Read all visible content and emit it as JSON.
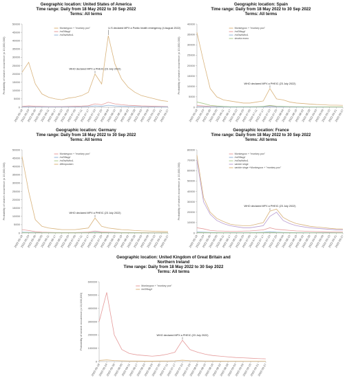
{
  "chart_data": [
    {
      "type": "line",
      "title": [
        "Geographic location: United States of America",
        "Time range: Daily from 18 May 2022 to 30 Sep 2022",
        "Terms: All terms"
      ],
      "y_label": "Probability of search occurrence (x 10,000,000)",
      "x": [
        "2022-05-18",
        "2022-05-24",
        "2022-05-30",
        "2022-06-05",
        "2022-06-11",
        "2022-06-17",
        "2022-06-23",
        "2022-06-29",
        "2022-07-05",
        "2022-07-11",
        "2022-07-17",
        "2022-07-23",
        "2022-07-29",
        "2022-08-04",
        "2022-08-10",
        "2022-08-16",
        "2022-08-22",
        "2022-08-28",
        "2022-09-03",
        "2022-09-09",
        "2022-09-15",
        "2022-09-21",
        "2022-09-27"
      ],
      "ylim": [
        0,
        50000
      ],
      "yticks": [
        0,
        5000,
        10000,
        15000,
        20000,
        25000,
        30000,
        35000,
        40000,
        45000,
        50000
      ],
      "series": [
        {
          "name": "Monkeypox + \"monkey pox\"",
          "color": "#d8b27a",
          "values": [
            21000,
            27000,
            14000,
            8000,
            6000,
            5000,
            4500,
            5500,
            6000,
            7000,
            9000,
            20000,
            14000,
            43000,
            26000,
            17000,
            12000,
            9000,
            7000,
            6000,
            5000,
            4000,
            3500
          ]
        },
        {
          "name": "/m/09kqyf",
          "color": "#e59a9a",
          "values": [
            500,
            800,
            600,
            500,
            400,
            400,
            400,
            500,
            600,
            700,
            900,
            2000,
            1500,
            3000,
            2000,
            1500,
            1200,
            1000,
            800,
            700,
            600,
            500,
            400
          ]
        },
        {
          "name": "/m/0w9sfhx1",
          "color": "#8fb0d6",
          "values": [
            200,
            300,
            200,
            200,
            150,
            150,
            150,
            200,
            200,
            300,
            400,
            800,
            600,
            1200,
            800,
            600,
            500,
            400,
            300,
            300,
            200,
            200,
            150
          ]
        }
      ],
      "annotations": [
        {
          "text": "WHO declared MPX a PHEIC (23 July 2022)",
          "x": "2022-07-23"
        },
        {
          "text": "U.S declared MPX a Public health emergency (4 August 2022)",
          "x": "2022-08-04"
        }
      ]
    },
    {
      "type": "line",
      "title": [
        "Geographic location: Spain",
        "Time range: Daily from 18 May 2022 to 30 Sep 2022",
        "Terms: All terms"
      ],
      "y_label": "Probability of search occurrence (x 10,000,000)",
      "x": [
        "2022-05-18",
        "2022-05-24",
        "2022-05-30",
        "2022-06-05",
        "2022-06-11",
        "2022-06-17",
        "2022-06-23",
        "2022-06-29",
        "2022-07-05",
        "2022-07-11",
        "2022-07-17",
        "2022-07-23",
        "2022-07-29",
        "2022-08-04",
        "2022-08-10",
        "2022-08-16",
        "2022-08-22",
        "2022-08-28",
        "2022-09-03",
        "2022-09-09",
        "2022-09-15",
        "2022-09-21",
        "2022-09-27"
      ],
      "ylim": [
        0,
        40000
      ],
      "yticks": [
        0,
        5000,
        10000,
        15000,
        20000,
        25000,
        30000,
        35000,
        40000
      ],
      "series": [
        {
          "name": "Monkeypox + \"monkey pox\"",
          "color": "#d8b27a",
          "values": [
            36000,
            22000,
            9000,
            5000,
            3500,
            3000,
            2500,
            2000,
            2000,
            2500,
            3000,
            9000,
            4000,
            3500,
            2500,
            2000,
            1800,
            1500,
            1300,
            1200,
            1000,
            1000,
            900
          ]
        },
        {
          "name": "/m/09kqyf",
          "color": "#e59a9a",
          "values": [
            800,
            600,
            400,
            300,
            300,
            200,
            200,
            200,
            200,
            300,
            300,
            800,
            400,
            300,
            300,
            200,
            200,
            200,
            200,
            150,
            150,
            150,
            150
          ]
        },
        {
          "name": "/m/0w9sfhx1",
          "color": "#8fb0d6",
          "values": [
            300,
            250,
            200,
            150,
            150,
            100,
            100,
            100,
            100,
            150,
            150,
            400,
            200,
            150,
            150,
            100,
            100,
            100,
            100,
            100,
            100,
            80,
            80
          ]
        },
        {
          "name": "viruela mono",
          "color": "#a8c98a",
          "values": [
            2500,
            1800,
            900,
            600,
            400,
            300,
            300,
            300,
            300,
            300,
            400,
            900,
            500,
            400,
            300,
            300,
            250,
            200,
            200,
            200,
            150,
            150,
            150
          ]
        }
      ],
      "annotations": [
        {
          "text": "WHO declared MPX a PHEIC (23 July 2022)",
          "x": "2022-07-23"
        }
      ]
    },
    {
      "type": "line",
      "title": [
        "Geographic location: Germany",
        "Time range: Daily from 18 May 2022 to 30 Sep 2022",
        "Terms: All terms"
      ],
      "y_label": "Probability of search occurrence (x 10,000,000)",
      "x": [
        "2022-05-18",
        "2022-05-24",
        "2022-05-30",
        "2022-06-05",
        "2022-06-11",
        "2022-06-17",
        "2022-06-23",
        "2022-06-29",
        "2022-07-05",
        "2022-07-11",
        "2022-07-17",
        "2022-07-23",
        "2022-07-29",
        "2022-08-04",
        "2022-08-10",
        "2022-08-16",
        "2022-08-22",
        "2022-08-28",
        "2022-09-03",
        "2022-09-09",
        "2022-09-15",
        "2022-09-21",
        "2022-09-27"
      ],
      "ylim": [
        0,
        50000
      ],
      "yticks": [
        0,
        5000,
        10000,
        15000,
        20000,
        25000,
        30000,
        35000,
        40000,
        45000,
        50000
      ],
      "series": [
        {
          "name": "Monkeypox + \"monkey pox\"",
          "color": "#e59a9a",
          "values": [
            2000,
            1500,
            800,
            500,
            400,
            300,
            300,
            300,
            300,
            400,
            500,
            1200,
            600,
            500,
            400,
            300,
            300,
            250,
            250,
            200,
            200,
            200,
            150
          ]
        },
        {
          "name": "/m/09kqyf",
          "color": "#8fb0d6",
          "values": [
            500,
            400,
            300,
            200,
            200,
            150,
            150,
            150,
            150,
            200,
            200,
            500,
            300,
            250,
            200,
            150,
            150,
            150,
            100,
            100,
            100,
            100,
            100
          ]
        },
        {
          "name": "/m/0w9sfhx1",
          "color": "#a8c98a",
          "values": [
            200,
            150,
            100,
            100,
            100,
            80,
            80,
            80,
            80,
            100,
            100,
            200,
            120,
            100,
            100,
            80,
            80,
            80,
            80,
            60,
            60,
            60,
            60
          ]
        },
        {
          "name": "Affenpocken",
          "color": "#d8b27a",
          "values": [
            46000,
            25000,
            8000,
            4000,
            3000,
            2500,
            2000,
            2000,
            2000,
            2500,
            3000,
            9000,
            4000,
            3000,
            2500,
            2000,
            1800,
            1500,
            1300,
            1200,
            1000,
            900,
            800
          ]
        }
      ],
      "annotations": [
        {
          "text": "WHO declared MPX a PHEIC (23 July 2022)",
          "x": "2022-07-23"
        }
      ]
    },
    {
      "type": "line",
      "title": [
        "Geographic location: France",
        "Time range: Daily from 18 May 2022 to 30 Sep 2022",
        "Terms: All terms"
      ],
      "y_label": "Probability of search occurrence (x 10,000,000)",
      "x": [
        "2022-05-18",
        "2022-05-24",
        "2022-05-30",
        "2022-06-05",
        "2022-06-11",
        "2022-06-17",
        "2022-06-23",
        "2022-06-29",
        "2022-07-05",
        "2022-07-11",
        "2022-07-17",
        "2022-07-23",
        "2022-07-29",
        "2022-08-04",
        "2022-08-10",
        "2022-08-16",
        "2022-08-22",
        "2022-08-28",
        "2022-09-03",
        "2022-09-09",
        "2022-09-15",
        "2022-09-21",
        "2022-09-27"
      ],
      "ylim": [
        0,
        80000
      ],
      "yticks": [
        0,
        10000,
        20000,
        30000,
        40000,
        50000,
        60000,
        70000,
        80000
      ],
      "series": [
        {
          "name": "Monkeypox + \"monkey pox\"",
          "color": "#e59a9a",
          "values": [
            5000,
            4000,
            2500,
            2000,
            1800,
            1500,
            1500,
            1800,
            2000,
            2500,
            3000,
            5000,
            3500,
            3000,
            2500,
            2000,
            1800,
            1500,
            1300,
            1200,
            1000,
            1000,
            900
          ]
        },
        {
          "name": "/m/09kqyf",
          "color": "#8fb0d6",
          "values": [
            1000,
            800,
            600,
            500,
            400,
            400,
            400,
            400,
            500,
            600,
            700,
            1200,
            800,
            600,
            500,
            400,
            400,
            300,
            300,
            300,
            300,
            250,
            250
          ]
        },
        {
          "name": "/m/0w9sfhx1",
          "color": "#a8c98a",
          "values": [
            400,
            300,
            250,
            200,
            200,
            150,
            150,
            150,
            200,
            200,
            300,
            500,
            300,
            250,
            200,
            150,
            150,
            150,
            150,
            100,
            100,
            100,
            100
          ]
        },
        {
          "name": "variole singe",
          "color": "#b69ad0",
          "values": [
            70000,
            30000,
            18000,
            12000,
            9000,
            7000,
            6000,
            5000,
            5000,
            6000,
            7000,
            16000,
            20000,
            12000,
            9000,
            7000,
            6000,
            5000,
            4500,
            4000,
            3500,
            3000,
            3000
          ]
        },
        {
          "name": "variole singe +Monkeypox + \"monkey pox\"",
          "color": "#d8b27a",
          "values": [
            75000,
            34000,
            20000,
            14000,
            11000,
            8500,
            7500,
            7000,
            7000,
            8500,
            10000,
            21000,
            23000,
            15000,
            11500,
            9000,
            7800,
            6500,
            5800,
            5200,
            4500,
            4000,
            3900
          ]
        }
      ],
      "annotations": [
        {
          "text": "WHO declared MPX a PHEIC (23 July 2022)",
          "x": "2022-07-23"
        }
      ]
    },
    {
      "type": "line",
      "title": [
        "Geographic location: United Kingdom of Great Britain and",
        "Northern Ireland",
        "Time range: Daily from 18 May 2022 to 30 Sep 2022",
        "Terms: All terms"
      ],
      "y_label": "Probability of search occurrence (x 10,000,000)",
      "x": [
        "2022-05-18",
        "2022-05-24",
        "2022-05-30",
        "2022-06-05",
        "2022-06-11",
        "2022-06-17",
        "2022-06-23",
        "2022-06-29",
        "2022-07-05",
        "2022-07-11",
        "2022-07-17",
        "2022-07-23",
        "2022-07-29",
        "2022-08-04",
        "2022-08-10",
        "2022-08-16",
        "2022-08-22",
        "2022-08-28",
        "2022-09-03",
        "2022-09-09",
        "2022-09-15",
        "2022-09-21",
        "2022-09-27"
      ],
      "ylim": [
        0,
        600000
      ],
      "yticks": [
        0,
        100000,
        200000,
        300000,
        400000,
        500000,
        600000
      ],
      "series": [
        {
          "name": "Monkeypox + \"monkey pox\"",
          "color": "#e59a9a",
          "values": [
            300000,
            520000,
            200000,
            90000,
            60000,
            50000,
            45000,
            40000,
            45000,
            55000,
            70000,
            160000,
            90000,
            70000,
            55000,
            45000,
            40000,
            35000,
            30000,
            28000,
            25000,
            22000,
            20000
          ]
        },
        {
          "name": "/m/09kqyf",
          "color": "#d8b27a",
          "values": [
            8000,
            12000,
            7000,
            5000,
            4000,
            3500,
            3000,
            3000,
            3500,
            4000,
            5000,
            10000,
            6000,
            5000,
            4000,
            3500,
            3000,
            2500,
            2500,
            2000,
            2000,
            2000,
            1800
          ]
        }
      ],
      "annotations": [
        {
          "text": "WHO declared MPX a PHEIC (23 July 2022)",
          "x": "2022-07-23"
        }
      ]
    }
  ]
}
